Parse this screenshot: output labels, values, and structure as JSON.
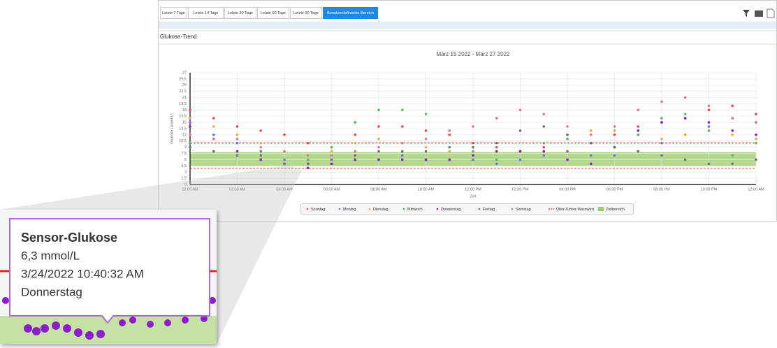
{
  "toolbar": {
    "buttons": [
      "Letzte 7 Tage",
      "Letzte 14 Tage",
      "Letzte 30 Tage",
      "Letzte 60 Tage",
      "Letzte 90 Tage",
      "Benutzerdefinierter Bereich"
    ]
  },
  "section_title": "Glukose-Trend",
  "chart_data": {
    "type": "scatter",
    "title": "März 15 2022 - März 27 2022",
    "x_label": "Zeit",
    "y_label": "Glukose (mmol/L)",
    "x": [
      0,
      1,
      2,
      3,
      4,
      5,
      6,
      7,
      8,
      9,
      10,
      11,
      12,
      13,
      14,
      15,
      16,
      17,
      18,
      19,
      20,
      21,
      22,
      23,
      24
    ],
    "xlim": [
      0,
      24
    ],
    "xticks": [
      {
        "value": 0,
        "label": "12:00 AM"
      },
      {
        "value": 2,
        "label": "02:00 AM"
      },
      {
        "value": 4,
        "label": "04:00 AM"
      },
      {
        "value": 6,
        "label": "06:00 AM"
      },
      {
        "value": 8,
        "label": "08:00 AM"
      },
      {
        "value": 10,
        "label": "10:00 AM"
      },
      {
        "value": 12,
        "label": "12:00 PM"
      },
      {
        "value": 14,
        "label": "02:00 PM"
      },
      {
        "value": 16,
        "label": "04:00 PM"
      },
      {
        "value": 18,
        "label": "06:00 PM"
      },
      {
        "value": 20,
        "label": "08:00 PM"
      },
      {
        "value": 22,
        "label": "10:00 PM"
      },
      {
        "value": 24,
        "label": "12:00 AM"
      }
    ],
    "ylim": [
      0,
      27
    ],
    "yticks": [
      0,
      {
        "value": 1.5,
        "label": "1,5"
      },
      3,
      {
        "value": 4.5,
        "label": "4,5"
      },
      6,
      {
        "value": 7.5,
        "label": "7,5"
      },
      9,
      {
        "value": 10.5,
        "label": "10,5"
      },
      12,
      {
        "value": 13.5,
        "label": "13,5"
      },
      15,
      {
        "value": 16.5,
        "label": "16,5"
      },
      18,
      {
        "value": 19.5,
        "label": "19,5"
      },
      21,
      {
        "value": 22.5,
        "label": "22,5"
      },
      24,
      {
        "value": 25.5,
        "label": "25,5"
      },
      27
    ],
    "grid": true,
    "series": [
      {
        "name": "Sonntag",
        "color": "#e5484d",
        "values": [
          18,
          16,
          14,
          13,
          12,
          10,
          9,
          12,
          14,
          14,
          13,
          12,
          10,
          9,
          8,
          9,
          8,
          10,
          12,
          14,
          15,
          16,
          18,
          19,
          17
        ]
      },
      {
        "name": "Montag",
        "color": "#6f74d8",
        "values": [
          15,
          12,
          10,
          8,
          6,
          5,
          5,
          6,
          6,
          7,
          6,
          6,
          6,
          5,
          6,
          7,
          8,
          7,
          7,
          8,
          10,
          12,
          14,
          16,
          15
        ]
      },
      {
        "name": "Dienstag",
        "color": "#f2a93b",
        "values": [
          16,
          14,
          12,
          10,
          8,
          7,
          8,
          10,
          11,
          10,
          9,
          8,
          7,
          6,
          8,
          10,
          12,
          13,
          13,
          12,
          11,
          12,
          13,
          12,
          11
        ]
      },
      {
        "name": "Mittwoch",
        "color": "#5cb85c",
        "values": [
          10,
          8,
          7,
          6,
          5,
          6,
          9,
          15,
          18,
          18,
          17,
          13,
          8,
          6,
          8,
          10,
          11,
          10,
          9,
          12,
          16,
          17,
          13,
          7,
          10
        ]
      },
      {
        "name": "Donnerstag",
        "color": "#8a1fc9",
        "values": [
          14,
          11,
          8,
          6,
          5,
          4,
          5,
          6,
          6,
          6,
          6,
          6,
          7,
          8,
          8,
          8,
          6,
          5,
          9,
          13,
          15,
          16,
          15,
          13,
          12
        ]
      },
      {
        "name": "Freitag",
        "color": "#707070",
        "values": [
          9,
          8,
          7,
          7,
          5,
          5,
          6,
          7,
          8,
          8,
          8,
          9,
          9,
          10,
          13,
          14,
          12,
          10,
          9,
          8,
          7,
          6,
          5,
          5,
          6
        ]
      },
      {
        "name": "Samstag",
        "color": "#d9779a",
        "values": [
          12,
          11,
          11,
          9,
          8,
          7,
          7,
          8,
          9,
          10,
          11,
          13,
          14,
          16,
          18,
          17,
          14,
          12,
          14,
          18,
          20,
          21,
          19,
          16,
          15
        ]
      }
    ],
    "thresholds": {
      "name": "Über-/Unter-Warnwert",
      "color": "#d9261c",
      "values": [
        3.9,
        10
      ]
    },
    "target_range": {
      "name": "Zielbereich",
      "color": "#9ccc65",
      "values": [
        4.4,
        7.8
      ]
    }
  },
  "tooltip": {
    "title": "Sensor-Glukose",
    "value": "6,3 mmol/L",
    "timestamp": "3/24/2022 10:40:32 AM",
    "day": "Donnerstag"
  }
}
